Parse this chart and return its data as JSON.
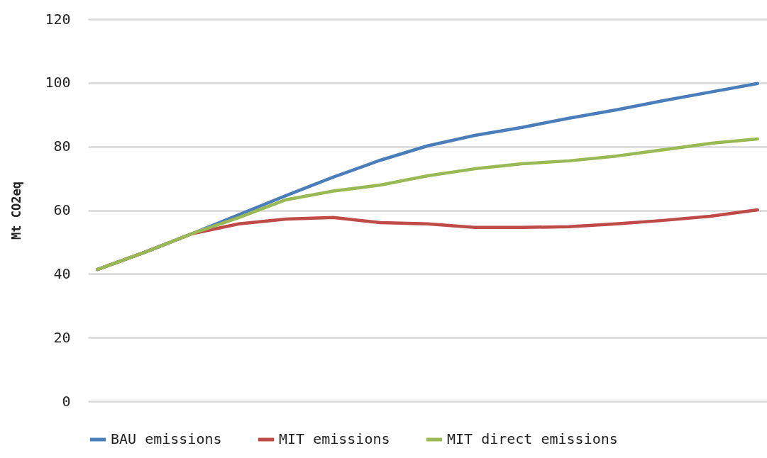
{
  "chart_data": {
    "type": "line",
    "ylabel": "Mt CO2eq",
    "categories": [
      null,
      null,
      null,
      null,
      null,
      null,
      null,
      null,
      null,
      null,
      null,
      null,
      null,
      null,
      null
    ],
    "series": [
      {
        "name": "BAU emissions",
        "color": "#4a7ebb",
        "values": [
          41.4,
          46.8,
          52.6,
          58.6,
          64.6,
          70.4,
          75.7,
          80.2,
          83.5,
          86,
          88.9,
          91.5,
          94.4,
          97.1,
          99.8
        ]
      },
      {
        "name": "MIT emissions",
        "color": "#be4b48",
        "values": [
          41.4,
          46.8,
          52.6,
          55.7,
          57.2,
          57.7,
          56.1,
          55.7,
          54.6,
          54.6,
          54.8,
          55.7,
          56.8,
          58.1,
          60.1
        ]
      },
      {
        "name": "MIT direct emissions",
        "color": "#98b954",
        "values": [
          41.4,
          46.8,
          52.6,
          57.7,
          63.3,
          66,
          67.9,
          70.8,
          73,
          74.6,
          75.5,
          77,
          79,
          81,
          82.4
        ]
      }
    ],
    "ylim": [
      0,
      120
    ],
    "yticks": [
      0,
      20,
      40,
      60,
      80,
      100,
      120
    ],
    "grid": "y",
    "legend": "bottom",
    "tick_labels": "y",
    "marker": "none",
    "line_style": "solid"
  }
}
